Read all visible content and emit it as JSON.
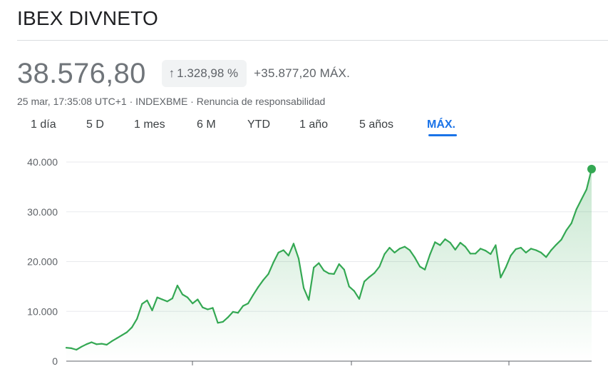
{
  "header": {
    "title": "IBEX DIVNETO"
  },
  "quote": {
    "price": "38.576,80",
    "change_percent": "1.328,98 %",
    "change_arrow": "↑",
    "change_absolute": "+35.877,20 MÁX.",
    "meta_time": "25 mar, 17:35:08 UTC+1",
    "meta_sep1": " · ",
    "meta_exchange": "INDEXBME",
    "meta_sep2": " · ",
    "meta_disclaimer": "Renuncia de responsabilidad"
  },
  "tabs": [
    {
      "label": "1 día"
    },
    {
      "label": "5 D"
    },
    {
      "label": "1 mes"
    },
    {
      "label": "6 M"
    },
    {
      "label": "YTD"
    },
    {
      "label": "1 año"
    },
    {
      "label": "5 años"
    },
    {
      "label": "MÁX.",
      "active": true
    }
  ],
  "colors": {
    "line": "#34a853",
    "accent": "#1a73e8",
    "grid": "#e8eaed"
  },
  "chart_data": {
    "type": "area",
    "ylim": [
      0,
      40000
    ],
    "yticks": [
      0,
      10000,
      20000,
      30000,
      40000
    ],
    "ytick_labels": [
      "0",
      "10.000",
      "20.000",
      "30.000",
      "40.000"
    ],
    "xlabel": "",
    "ylabel": "",
    "grid": true,
    "series": [
      {
        "values": [
          2700,
          2600,
          2300,
          2900,
          3400,
          3800,
          3400,
          3500,
          3300,
          4000,
          4600,
          5200,
          5800,
          6800,
          8500,
          11500,
          12200,
          10200,
          12800,
          12400,
          12000,
          12600,
          15200,
          13400,
          12800,
          11600,
          12400,
          10800,
          10400,
          10700,
          7700,
          7900,
          8800,
          9900,
          9700,
          11100,
          11600,
          13300,
          14900,
          16300,
          17500,
          19800,
          21800,
          22300,
          21200,
          23600,
          20600,
          14700,
          12300,
          18800,
          19700,
          18200,
          17600,
          17500,
          19500,
          18400,
          15000,
          14100,
          12500,
          16000,
          16900,
          17700,
          19000,
          21500,
          22800,
          21800,
          22600,
          23000,
          22300,
          20800,
          19000,
          18400,
          21400,
          23900,
          23300,
          24500,
          23800,
          22400,
          23800,
          23000,
          21600,
          21600,
          22600,
          22200,
          21500,
          23300,
          16800,
          18800,
          21200,
          22500,
          22800,
          21800,
          22600,
          22300,
          21800,
          20900,
          22300,
          23400,
          24400,
          26300,
          27700,
          30500,
          32500,
          34500,
          38577
        ]
      }
    ]
  }
}
